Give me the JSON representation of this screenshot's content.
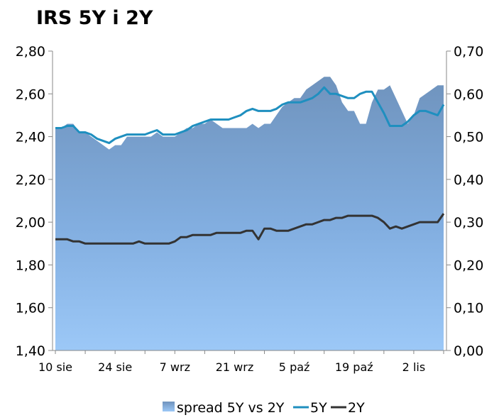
{
  "chart_data": {
    "type": "area+line",
    "title": "IRS 5Y i 2Y",
    "left_axis": {
      "min": 1.4,
      "max": 2.8,
      "ticks": [
        "1,40",
        "1,60",
        "1,80",
        "2,00",
        "2,20",
        "2,40",
        "2,60",
        "2,80"
      ]
    },
    "right_axis": {
      "min": 0.0,
      "max": 0.7,
      "ticks": [
        "0,00",
        "0,10",
        "0,20",
        "0,30",
        "0,40",
        "0,50",
        "0,60",
        "0,70"
      ]
    },
    "x_labels": [
      "10 sie",
      "24 sie",
      "7 wrz",
      "21 wrz",
      "5 paź",
      "19 paź",
      "2 lis"
    ],
    "x_label_index": [
      0,
      10,
      20,
      30,
      40,
      50,
      60
    ],
    "n_points": 66,
    "series": [
      {
        "name": "spread 5Y vs 2Y",
        "kind": "area",
        "axis": "right",
        "color": "#7aa5cf",
        "values": [
          0.52,
          0.52,
          0.53,
          0.53,
          0.51,
          0.51,
          0.5,
          0.49,
          0.48,
          0.47,
          0.48,
          0.48,
          0.5,
          0.5,
          0.5,
          0.5,
          0.5,
          0.51,
          0.5,
          0.5,
          0.5,
          0.51,
          0.52,
          0.52,
          0.53,
          0.53,
          0.54,
          0.53,
          0.52,
          0.52,
          0.52,
          0.52,
          0.52,
          0.53,
          0.52,
          0.53,
          0.53,
          0.55,
          0.57,
          0.58,
          0.59,
          0.59,
          0.61,
          0.62,
          0.63,
          0.64,
          0.64,
          0.62,
          0.58,
          0.56,
          0.56,
          0.53,
          0.53,
          0.58,
          0.61,
          0.61,
          0.62,
          0.59,
          0.56,
          0.53,
          0.55,
          0.59,
          0.6,
          0.61,
          0.62,
          0.62
        ]
      },
      {
        "name": "5Y",
        "kind": "line",
        "axis": "left",
        "color": "#1f8fbf",
        "values": [
          2.44,
          2.44,
          2.45,
          2.45,
          2.42,
          2.42,
          2.41,
          2.39,
          2.38,
          2.37,
          2.39,
          2.4,
          2.41,
          2.41,
          2.41,
          2.41,
          2.42,
          2.43,
          2.41,
          2.41,
          2.41,
          2.42,
          2.43,
          2.45,
          2.46,
          2.47,
          2.48,
          2.48,
          2.48,
          2.48,
          2.49,
          2.5,
          2.52,
          2.53,
          2.52,
          2.52,
          2.52,
          2.53,
          2.55,
          2.56,
          2.56,
          2.56,
          2.57,
          2.58,
          2.6,
          2.63,
          2.6,
          2.6,
          2.59,
          2.58,
          2.58,
          2.6,
          2.61,
          2.61,
          2.56,
          2.51,
          2.45,
          2.45,
          2.45,
          2.47,
          2.5,
          2.52,
          2.52,
          2.51,
          2.5,
          2.55
        ]
      },
      {
        "name": "2Y",
        "kind": "line",
        "axis": "left",
        "color": "#333333",
        "values": [
          1.92,
          1.92,
          1.92,
          1.91,
          1.91,
          1.9,
          1.9,
          1.9,
          1.9,
          1.9,
          1.9,
          1.9,
          1.9,
          1.9,
          1.91,
          1.9,
          1.9,
          1.9,
          1.9,
          1.9,
          1.91,
          1.93,
          1.93,
          1.94,
          1.94,
          1.94,
          1.94,
          1.95,
          1.95,
          1.95,
          1.95,
          1.95,
          1.96,
          1.96,
          1.92,
          1.97,
          1.97,
          1.96,
          1.96,
          1.96,
          1.97,
          1.98,
          1.99,
          1.99,
          2.0,
          2.01,
          2.01,
          2.02,
          2.02,
          2.03,
          2.03,
          2.03,
          2.03,
          2.03,
          2.02,
          2.0,
          1.97,
          1.98,
          1.97,
          1.98,
          1.99,
          2.0,
          2.0,
          2.0,
          2.0,
          2.04
        ]
      }
    ],
    "legend": {
      "position": "bottom"
    },
    "grid": false
  }
}
